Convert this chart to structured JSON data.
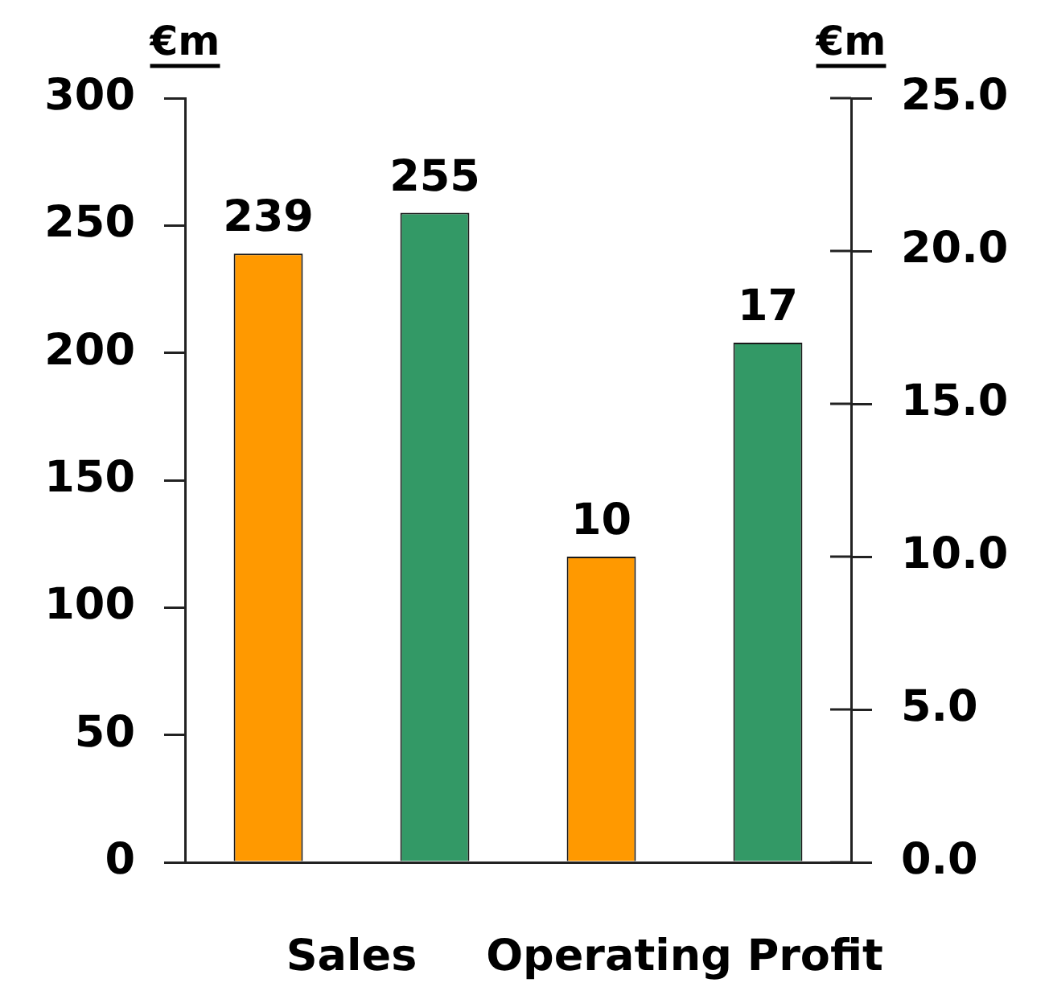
{
  "chart_data": {
    "type": "bar",
    "ylabel": "€m",
    "y2label": "€m",
    "categories": [
      "Sales",
      "Operating Profit"
    ],
    "series": [
      {
        "color": "#ff9900",
        "values": [
          239,
          null
        ]
      },
      {
        "color": "#339966",
        "values": [
          255,
          null
        ]
      },
      {
        "color": "#ff9900",
        "values": [
          null,
          10
        ],
        "axis": "y2"
      },
      {
        "color": "#339966",
        "values": [
          null,
          17
        ],
        "axis": "y2"
      }
    ],
    "ylim": [
      0,
      300
    ],
    "yticks": [
      0,
      50,
      100,
      150,
      200,
      250,
      300
    ],
    "y2lim": [
      0,
      25
    ],
    "y2ticks": [
      {
        "value": 0,
        "label": "0.0"
      },
      {
        "value": 5,
        "label": "5.0"
      },
      {
        "value": 10,
        "label": "10.0"
      },
      {
        "value": 15,
        "label": "15.0"
      },
      {
        "value": 20,
        "label": "20.0"
      },
      {
        "value": 25,
        "label": "25.0"
      }
    ],
    "data_labels": true
  }
}
